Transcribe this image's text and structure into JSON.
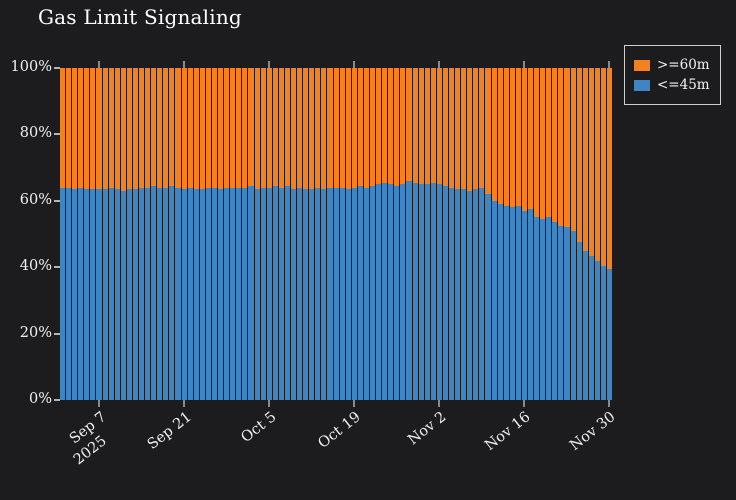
{
  "title": "Gas Limit Signaling",
  "colors": {
    "background": "#1c1c1e",
    "text": "#f0f0f0",
    "orange": "#f5811e",
    "blue": "#3d85c3",
    "legend_border": "#cfcfcf"
  },
  "chart_data": {
    "type": "bar",
    "stacked": true,
    "normalized_percent": true,
    "grid": false,
    "title": "Gas Limit Signaling",
    "ylim": [
      0,
      100
    ],
    "ytick_labels": [
      "0%",
      "20%",
      "40%",
      "60%",
      "80%",
      "100%"
    ],
    "xticks": {
      "indices": [
        6,
        20,
        34,
        48,
        62,
        76,
        90
      ],
      "labels": [
        "Sep 7",
        "Sep 21",
        "Oct 5",
        "Oct 19",
        "Nov 2",
        "Nov 16",
        "Nov 30"
      ],
      "year_label": "2025"
    },
    "n_bars": 91,
    "legend": {
      "position": "top-right",
      "entries": [
        {
          "label": ">=60m",
          "color": "#f5811e"
        },
        {
          "label": "<=45m",
          "color": "#3d85c3"
        }
      ]
    },
    "series": [
      {
        "name": ">=60m",
        "color": "#f5811e",
        "note": "complement of <=45m to 100%"
      },
      {
        "name": "<=45m",
        "color": "#3d85c3",
        "values": [
          64,
          64,
          63.5,
          64,
          63.5,
          63.5,
          63.5,
          63.5,
          64,
          63.5,
          63,
          63.5,
          63.5,
          64,
          64,
          64.5,
          64,
          64,
          64.5,
          64,
          63.5,
          64,
          63.5,
          63.5,
          64,
          64,
          63.5,
          64,
          64,
          64,
          64,
          64.5,
          63.5,
          64,
          64,
          64.5,
          64,
          64.5,
          63.5,
          64,
          63.5,
          63.5,
          64,
          63.5,
          64,
          64,
          64,
          63.5,
          64,
          64.5,
          64,
          64.5,
          65,
          65.5,
          65,
          64.5,
          65,
          66,
          65.5,
          65,
          65,
          65.5,
          65,
          64.5,
          64,
          63.5,
          63.5,
          63,
          63.5,
          64,
          62,
          60,
          59,
          58.5,
          58,
          58.5,
          57,
          57.5,
          55,
          54.5,
          55,
          53.5,
          52.5,
          52,
          51,
          47.5,
          45,
          43.5,
          42,
          40.5,
          39.5
        ]
      }
    ]
  }
}
